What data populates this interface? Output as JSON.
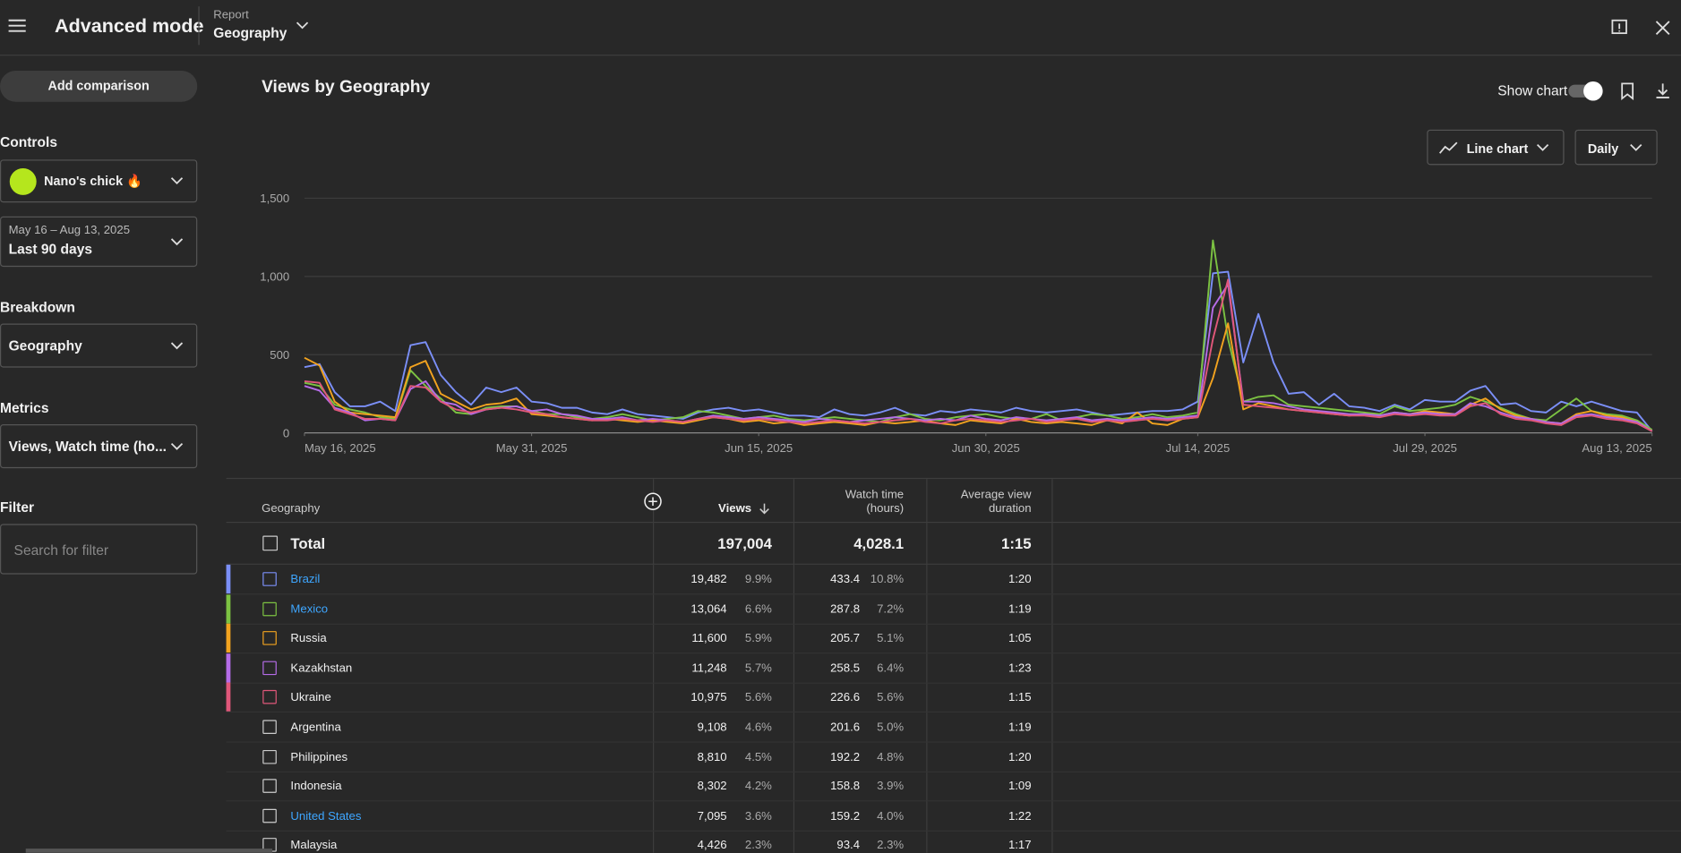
{
  "header": {
    "title": "Advanced mode",
    "report_label": "Report",
    "report_value": "Geography"
  },
  "sidebar": {
    "add_comparison": "Add comparison",
    "controls": "Controls",
    "channel": "Nano's chick 🔥",
    "date_range": "May 16 – Aug 13, 2025",
    "date_preset": "Last 90 days",
    "breakdown": "Breakdown",
    "breakdown_value": "Geography",
    "metrics": "Metrics",
    "metrics_value": "Views, Watch time (ho...",
    "filter": "Filter",
    "filter_placeholder": "Search for filter"
  },
  "panel": {
    "show_chart": "Show chart",
    "chart_kind": "Line chart",
    "interval": "Daily"
  },
  "chart_data": {
    "type": "line",
    "title": "Views by Geography",
    "grid": true,
    "x": [
      "2025-05-16",
      "2025-05-17",
      "2025-05-18",
      "2025-05-19",
      "2025-05-20",
      "2025-05-21",
      "2025-05-22",
      "2025-05-23",
      "2025-05-24",
      "2025-05-25",
      "2025-05-26",
      "2025-05-27",
      "2025-05-28",
      "2025-05-29",
      "2025-05-30",
      "2025-05-31",
      "2025-06-01",
      "2025-06-02",
      "2025-06-03",
      "2025-06-04",
      "2025-06-05",
      "2025-06-06",
      "2025-06-07",
      "2025-06-08",
      "2025-06-09",
      "2025-06-10",
      "2025-06-11",
      "2025-06-12",
      "2025-06-13",
      "2025-06-14",
      "2025-06-15",
      "2025-06-16",
      "2025-06-17",
      "2025-06-18",
      "2025-06-19",
      "2025-06-20",
      "2025-06-21",
      "2025-06-22",
      "2025-06-23",
      "2025-06-24",
      "2025-06-25",
      "2025-06-26",
      "2025-06-27",
      "2025-06-28",
      "2025-06-29",
      "2025-06-30",
      "2025-07-01",
      "2025-07-02",
      "2025-07-03",
      "2025-07-04",
      "2025-07-05",
      "2025-07-06",
      "2025-07-07",
      "2025-07-08",
      "2025-07-09",
      "2025-07-10",
      "2025-07-11",
      "2025-07-12",
      "2025-07-13",
      "2025-07-14",
      "2025-07-15",
      "2025-07-16",
      "2025-07-17",
      "2025-07-18",
      "2025-07-19",
      "2025-07-20",
      "2025-07-21",
      "2025-07-22",
      "2025-07-23",
      "2025-07-24",
      "2025-07-25",
      "2025-07-26",
      "2025-07-27",
      "2025-07-28",
      "2025-07-29",
      "2025-07-30",
      "2025-07-31",
      "2025-08-01",
      "2025-08-02",
      "2025-08-03",
      "2025-08-04",
      "2025-08-05",
      "2025-08-06",
      "2025-08-07",
      "2025-08-08",
      "2025-08-09",
      "2025-08-10",
      "2025-08-11",
      "2025-08-12",
      "2025-08-13"
    ],
    "xlim": [
      "2025-05-16",
      "2025-08-13"
    ],
    "xticks": [
      {
        "value": "2025-05-16",
        "label": "May 16, 2025"
      },
      {
        "value": "2025-05-31",
        "label": "May 31, 2025"
      },
      {
        "value": "2025-06-15",
        "label": "Jun 15, 2025"
      },
      {
        "value": "2025-06-30",
        "label": "Jun 30, 2025"
      },
      {
        "value": "2025-07-14",
        "label": "Jul 14, 2025"
      },
      {
        "value": "2025-07-29",
        "label": "Jul 29, 2025"
      },
      {
        "value": "2025-08-13",
        "label": "Aug 13, 2025"
      }
    ],
    "ylim": [
      0,
      1500
    ],
    "yticks": [
      0,
      500,
      {
        "value": 1000,
        "label": "1,000"
      },
      {
        "value": 1500,
        "label": "1,500"
      }
    ],
    "series": [
      {
        "name": "Brazil",
        "color": "#7b8ff7",
        "values": [
          420,
          440,
          260,
          170,
          170,
          200,
          140,
          560,
          580,
          370,
          260,
          180,
          290,
          260,
          290,
          200,
          190,
          160,
          160,
          130,
          120,
          150,
          120,
          110,
          100,
          90,
          130,
          150,
          160,
          140,
          150,
          130,
          110,
          110,
          100,
          150,
          120,
          110,
          130,
          160,
          120,
          110,
          140,
          130,
          150,
          140,
          130,
          160,
          140,
          130,
          140,
          150,
          130,
          110,
          120,
          130,
          140,
          140,
          150,
          200,
          1020,
          1030,
          450,
          760,
          450,
          250,
          260,
          180,
          250,
          170,
          160,
          140,
          180,
          150,
          210,
          200,
          200,
          270,
          300,
          180,
          190,
          140,
          130,
          200,
          170,
          200,
          170,
          140,
          130,
          10
        ]
      },
      {
        "name": "Mexico",
        "color": "#7cc242",
        "values": [
          320,
          300,
          180,
          150,
          130,
          100,
          90,
          400,
          300,
          220,
          130,
          120,
          160,
          170,
          170,
          140,
          120,
          120,
          100,
          90,
          100,
          120,
          100,
          80,
          90,
          100,
          140,
          130,
          110,
          90,
          100,
          110,
          90,
          80,
          90,
          100,
          90,
          80,
          70,
          100,
          120,
          90,
          80,
          100,
          110,
          120,
          100,
          90,
          90,
          120,
          80,
          100,
          120,
          110,
          90,
          100,
          120,
          100,
          110,
          130,
          1230,
          600,
          200,
          230,
          240,
          180,
          170,
          160,
          150,
          140,
          130,
          120,
          170,
          140,
          150,
          160,
          180,
          230,
          200,
          160,
          120,
          90,
          80,
          150,
          220,
          140,
          120,
          110,
          80,
          20
        ]
      },
      {
        "name": "Russia",
        "color": "#f2a31f",
        "values": [
          480,
          430,
          200,
          130,
          120,
          110,
          100,
          420,
          460,
          250,
          200,
          150,
          180,
          190,
          220,
          120,
          110,
          100,
          90,
          80,
          90,
          80,
          70,
          80,
          70,
          60,
          80,
          100,
          90,
          70,
          80,
          60,
          70,
          50,
          60,
          70,
          60,
          50,
          70,
          60,
          70,
          80,
          60,
          50,
          80,
          70,
          60,
          90,
          70,
          60,
          70,
          60,
          50,
          80,
          60,
          130,
          60,
          50,
          90,
          100,
          350,
          700,
          150,
          190,
          170,
          150,
          140,
          130,
          120,
          110,
          120,
          110,
          130,
          120,
          140,
          130,
          120,
          180,
          220,
          150,
          110,
          90,
          70,
          60,
          120,
          140,
          110,
          100,
          70,
          10
        ]
      },
      {
        "name": "Kazakhstan",
        "color": "#b56ce8",
        "values": [
          300,
          270,
          160,
          130,
          80,
          90,
          80,
          280,
          330,
          200,
          180,
          120,
          150,
          160,
          170,
          140,
          150,
          120,
          110,
          90,
          90,
          100,
          80,
          90,
          80,
          70,
          90,
          110,
          100,
          90,
          100,
          90,
          80,
          70,
          90,
          80,
          70,
          80,
          90,
          100,
          90,
          80,
          90,
          80,
          110,
          90,
          80,
          100,
          90,
          80,
          90,
          100,
          80,
          90,
          80,
          90,
          100,
          90,
          100,
          110,
          800,
          950,
          200,
          200,
          190,
          170,
          150,
          140,
          130,
          120,
          120,
          110,
          130,
          120,
          130,
          120,
          120,
          190,
          170,
          130,
          100,
          90,
          70,
          60,
          110,
          120,
          100,
          90,
          70,
          10
        ]
      },
      {
        "name": "Ukraine",
        "color": "#e0577a",
        "values": [
          330,
          320,
          150,
          120,
          90,
          90,
          80,
          300,
          290,
          200,
          150,
          130,
          150,
          160,
          150,
          130,
          120,
          100,
          90,
          80,
          80,
          90,
          80,
          70,
          80,
          70,
          90,
          100,
          90,
          80,
          90,
          80,
          70,
          60,
          70,
          80,
          70,
          60,
          70,
          80,
          90,
          70,
          60,
          80,
          90,
          80,
          70,
          80,
          90,
          70,
          80,
          90,
          70,
          80,
          70,
          80,
          90,
          80,
          90,
          100,
          600,
          980,
          180,
          170,
          160,
          150,
          140,
          130,
          120,
          110,
          110,
          100,
          120,
          110,
          120,
          110,
          110,
          170,
          190,
          120,
          90,
          80,
          60,
          50,
          100,
          110,
          90,
          80,
          60,
          10
        ]
      }
    ]
  },
  "table": {
    "headers": [
      "Geography",
      "Views",
      "Watch time (hours)",
      "Average view duration"
    ],
    "total": {
      "name": "Total",
      "views": "197,004",
      "watch": "4,028.1",
      "avg": "1:15"
    },
    "rows": [
      {
        "name": "Brazil",
        "link": true,
        "views": "19,482",
        "views_pct": "9.9%",
        "watch": "433.4",
        "watch_pct": "10.8%",
        "avg": "1:20"
      },
      {
        "name": "Mexico",
        "link": true,
        "views": "13,064",
        "views_pct": "6.6%",
        "watch": "287.8",
        "watch_pct": "7.2%",
        "avg": "1:19"
      },
      {
        "name": "Russia",
        "link": false,
        "views": "11,600",
        "views_pct": "5.9%",
        "watch": "205.7",
        "watch_pct": "5.1%",
        "avg": "1:05"
      },
      {
        "name": "Kazakhstan",
        "link": false,
        "views": "11,248",
        "views_pct": "5.7%",
        "watch": "258.5",
        "watch_pct": "6.4%",
        "avg": "1:23"
      },
      {
        "name": "Ukraine",
        "link": false,
        "views": "10,975",
        "views_pct": "5.6%",
        "watch": "226.6",
        "watch_pct": "5.6%",
        "avg": "1:15"
      },
      {
        "name": "Argentina",
        "link": false,
        "views": "9,108",
        "views_pct": "4.6%",
        "watch": "201.6",
        "watch_pct": "5.0%",
        "avg": "1:19"
      },
      {
        "name": "Philippines",
        "link": false,
        "views": "8,810",
        "views_pct": "4.5%",
        "watch": "192.2",
        "watch_pct": "4.8%",
        "avg": "1:20"
      },
      {
        "name": "Indonesia",
        "link": false,
        "views": "8,302",
        "views_pct": "4.2%",
        "watch": "158.8",
        "watch_pct": "3.9%",
        "avg": "1:09"
      },
      {
        "name": "United States",
        "link": true,
        "views": "7,095",
        "views_pct": "3.6%",
        "watch": "159.2",
        "watch_pct": "4.0%",
        "avg": "1:22"
      },
      {
        "name": "Malaysia",
        "link": false,
        "views": "4,426",
        "views_pct": "2.3%",
        "watch": "93.4",
        "watch_pct": "2.3%",
        "avg": "1:17"
      }
    ]
  }
}
